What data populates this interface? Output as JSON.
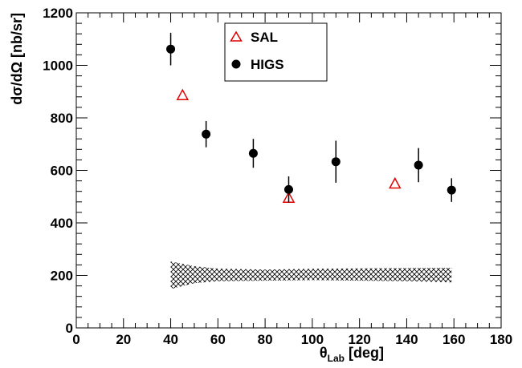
{
  "chart_data": {
    "type": "scatter",
    "xlabel": "θ",
    "xlabel_sub": "Lab",
    "xlabel_unit": " [deg]",
    "ylabel": "dσ/dΩ [nb/sr]",
    "xlim": [
      0,
      180
    ],
    "ylim": [
      0,
      1200
    ],
    "x_ticks": [
      0,
      20,
      40,
      60,
      80,
      100,
      120,
      140,
      160,
      180
    ],
    "y_ticks": [
      0,
      200,
      400,
      600,
      800,
      1000,
      1200
    ],
    "legend": {
      "position": "top-center",
      "entries": [
        "SAL",
        "HIGS"
      ]
    },
    "series": [
      {
        "name": "SAL",
        "marker": "open-triangle",
        "color": "#e00000",
        "points": [
          {
            "x": 45,
            "y": 888
          },
          {
            "x": 90,
            "y": 497
          },
          {
            "x": 135,
            "y": 551
          }
        ]
      },
      {
        "name": "HIGS",
        "marker": "filled-circle",
        "color": "#000000",
        "points": [
          {
            "x": 40,
            "y": 1062,
            "err": 62
          },
          {
            "x": 55,
            "y": 738,
            "err": 50
          },
          {
            "x": 75,
            "y": 665,
            "err": 55
          },
          {
            "x": 90,
            "y": 527,
            "err": 50
          },
          {
            "x": 110,
            "y": 633,
            "err": 80
          },
          {
            "x": 145,
            "y": 620,
            "err": 65
          },
          {
            "x": 159,
            "y": 525,
            "err": 45
          }
        ]
      }
    ],
    "band": {
      "fill": "crosshatch",
      "points": [
        {
          "x": 40,
          "low": 148,
          "high": 253
        },
        {
          "x": 50,
          "low": 170,
          "high": 235
        },
        {
          "x": 60,
          "low": 178,
          "high": 226
        },
        {
          "x": 80,
          "low": 180,
          "high": 222
        },
        {
          "x": 100,
          "low": 182,
          "high": 225
        },
        {
          "x": 120,
          "low": 180,
          "high": 227
        },
        {
          "x": 140,
          "low": 178,
          "high": 228
        },
        {
          "x": 159,
          "low": 173,
          "high": 229
        }
      ]
    }
  }
}
